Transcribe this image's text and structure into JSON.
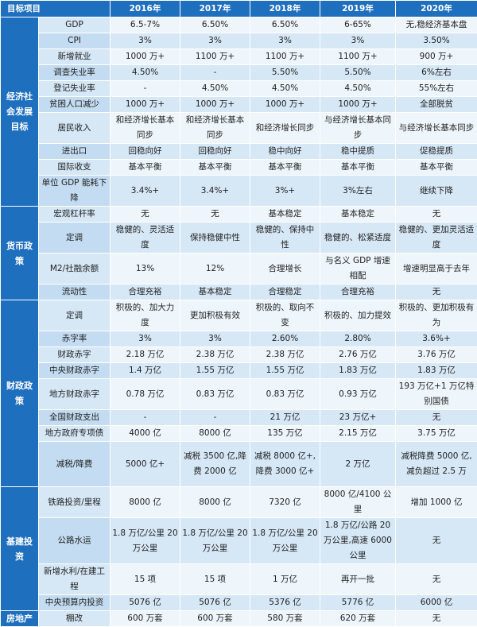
{
  "table": {
    "headers": [
      "目标项目",
      "2016年",
      "2017年",
      "2018年",
      "2019年",
      "2020年"
    ],
    "sections": [
      {
        "category": "经济社会发展目标",
        "rows": [
          {
            "label": "GDP",
            "values": [
              "6.5-7%",
              "6.50%",
              "6.50%",
              "6-65%",
              "无,稳经济基本盘"
            ]
          },
          {
            "label": "CPI",
            "values": [
              "3%",
              "3%",
              "3%",
              "3%",
              "3.50%"
            ]
          },
          {
            "label": "新增就业",
            "values": [
              "1000 万+",
              "1100 万+",
              "1100 万+",
              "1100 万+",
              "900 万+"
            ]
          },
          {
            "label": "调查失业率",
            "values": [
              "4.50%",
              "-",
              "5.50%",
              "5.50%",
              "6%左右"
            ]
          },
          {
            "label": "登记失业率",
            "values": [
              "-",
              "4.50%",
              "4.50%",
              "4.50%",
              "55%左右"
            ]
          },
          {
            "label": "贫困人口减少",
            "values": [
              "1000 万+",
              "1000 万+",
              "1000 万+",
              "1000 万+",
              "全部脱贫"
            ]
          },
          {
            "label": "居民收入",
            "values": [
              "和经济增长基本同步",
              "和经济增长基本同步",
              "和经济增长同步",
              "与经济增长基本同步",
              "与经济增长基本同步"
            ]
          },
          {
            "label": "进出口",
            "values": [
              "回稳向好",
              "回稳向好",
              "稳中向好",
              "稳中提质",
              "促稳提质"
            ]
          },
          {
            "label": "国际收支",
            "values": [
              "基本平衡",
              "基本平衡",
              "基本平衡",
              "基本平衡",
              "基本平衡"
            ]
          },
          {
            "label": "单位 GDP 能耗下降",
            "values": [
              "3.4%+",
              "3.4%+",
              "3%+",
              "3%左右",
              "继续下降"
            ]
          }
        ]
      },
      {
        "category": "货币政策",
        "rows": [
          {
            "label": "宏观杠杆率",
            "values": [
              "无",
              "无",
              "基本稳定",
              "基本稳定",
              "无"
            ]
          },
          {
            "label": "定调",
            "values": [
              "稳健的、灵活适度",
              "保持稳健中性",
              "稳健的、保持中性",
              "稳健的、松紧适度",
              "稳健的、更加灵活适度"
            ]
          },
          {
            "label": "M2/社融余额",
            "values": [
              "13%",
              "12%",
              "合理增长",
              "与名义 GDP 增速相配",
              "增速明显高于去年"
            ]
          },
          {
            "label": "流动性",
            "values": [
              "合理充裕",
              "基本稳定",
              "合理稳定",
              "合理充裕",
              "无"
            ]
          }
        ]
      },
      {
        "category": "财政政策",
        "rows": [
          {
            "label": "定调",
            "values": [
              "积极的、加大力度",
              "更加积极有效",
              "积极的、取向不变",
              "积极的、加力提效",
              "积极的、更加积极有为"
            ]
          },
          {
            "label": "赤字率",
            "values": [
              "3%",
              "3%",
              "2.60%",
              "2.80%",
              "3.6%+"
            ]
          },
          {
            "label": "财政赤字",
            "values": [
              "2.18 万亿",
              "2.38 万亿",
              "2.38 万亿",
              "2.76 万亿",
              "3.76 万亿"
            ]
          },
          {
            "label": "中央财政赤字",
            "values": [
              "1.4 万亿",
              "1.55 万亿",
              "1.55 万亿",
              "1.83 万亿",
              "1.83 万亿"
            ]
          },
          {
            "label": "地方财政赤字",
            "values": [
              "0.78 万亿",
              "0.83 万亿",
              "0.83 万亿",
              "0.93 万亿",
              "193 万亿+1 万亿特别国债"
            ]
          },
          {
            "label": "全国财政支出",
            "values": [
              "-",
              "-",
              "21 万亿",
              "23 万亿+",
              "无"
            ]
          },
          {
            "label": "地方政府专项债",
            "values": [
              "4000 亿",
              "8000 亿",
              "135 万亿",
              "2.15 万亿",
              "3.75 万亿"
            ]
          },
          {
            "label": "减税/降费",
            "values": [
              "5000 亿+",
              "减税 3500 亿,降费 2000 亿",
              "减税 8000 亿+,降费 3000 亿+",
              "2 万亿",
              "减税降费 5000 亿,减负超过 2.5 万"
            ]
          }
        ]
      },
      {
        "category": "基建投资",
        "rows": [
          {
            "label": "铁路投资/里程",
            "values": [
              "8000 亿",
              "8000 亿",
              "7320 亿",
              "8000 亿/4100 公里",
              "增加 1000 亿"
            ]
          },
          {
            "label": "公路水运",
            "values": [
              "1.8 万亿/公里 20 万公里",
              "1.8 万亿/公里 20 万公里",
              "1.8 万亿/公里 20 万公里",
              "1.8 万亿/公路 20 万公里,高速 6000 公里",
              "无"
            ]
          },
          {
            "label": "新增水利/在建工程",
            "values": [
              "15 项",
              "15 项",
              "1 万亿",
              "再开一批",
              "无"
            ]
          },
          {
            "label": "中央预算内投资",
            "values": [
              "5076 亿",
              "5076 亿",
              "5376 亿",
              "5776 亿",
              "6000 亿"
            ]
          }
        ]
      },
      {
        "category": "房地产",
        "rows": [
          {
            "label": "棚改",
            "values": [
              "600 万套",
              "600 万套",
              "580 万套",
              "620 万套",
              "无"
            ]
          }
        ]
      }
    ]
  }
}
